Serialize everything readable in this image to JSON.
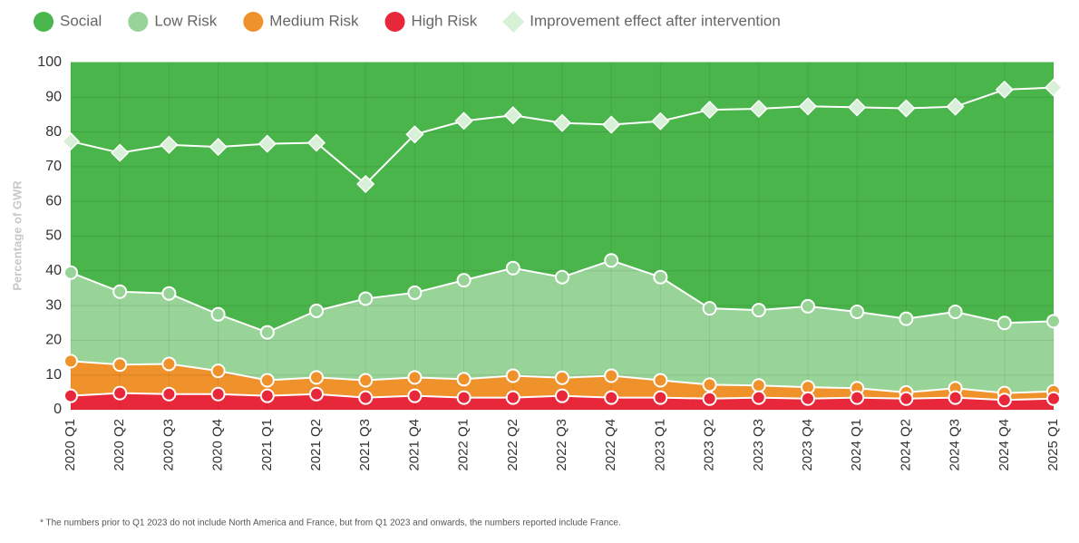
{
  "chart_data": {
    "type": "stacked-area",
    "y_label": "Percentage of GWR",
    "footnote": "* The numbers prior to Q1 2023 do not include North America and France, but from Q1 2023 and onwards, the numbers reported include France.",
    "categories": [
      "2020 Q1",
      "2020 Q2",
      "2020 Q3",
      "2020 Q4",
      "2021 Q1",
      "2021 Q2",
      "2021 Q3",
      "2021 Q4",
      "2022 Q1",
      "2022 Q2",
      "2022 Q3",
      "2022 Q4",
      "2023 Q1",
      "2023 Q2",
      "2023 Q3",
      "2023 Q4",
      "2024 Q1",
      "2024 Q2",
      "2024 Q3",
      "2024 Q4",
      "2025 Q1"
    ],
    "series": [
      {
        "name": "Social",
        "type": "area",
        "color": "#4ab54a",
        "markers": false,
        "values": [
          60.5,
          66,
          66.5,
          72.5,
          77.7,
          71.5,
          68,
          66.3,
          62.7,
          59.2,
          61.8,
          57,
          61.8,
          70.8,
          71.3,
          70.2,
          71.8,
          73.8,
          71.8,
          75,
          74.5
        ]
      },
      {
        "name": "Low Risk",
        "type": "area",
        "color": "#98d498",
        "markers": true,
        "values": [
          25.5,
          21,
          20.3,
          16.3,
          13.8,
          19.2,
          23.5,
          24.4,
          28.5,
          31,
          29,
          33.2,
          29.7,
          22,
          21.7,
          23.3,
          22,
          21.2,
          22,
          20.2,
          20.2
        ]
      },
      {
        "name": "Medium Risk",
        "type": "area",
        "color": "#f0922b",
        "markers": true,
        "values": [
          10,
          8.2,
          8.7,
          6.7,
          4.5,
          4.8,
          5,
          5.3,
          5.3,
          6.3,
          5.2,
          6.3,
          5,
          4,
          3.5,
          3.3,
          2.7,
          1.8,
          2.7,
          2,
          2.1
        ]
      },
      {
        "name": "High Risk",
        "type": "area",
        "color": "#e8283a",
        "markers": true,
        "values": [
          4,
          4.8,
          4.5,
          4.5,
          4,
          4.5,
          3.5,
          4,
          3.5,
          3.5,
          4,
          3.5,
          3.5,
          3.2,
          3.5,
          3.2,
          3.5,
          3.2,
          3.5,
          2.8,
          3.2
        ]
      },
      {
        "name": "Improvement effect after intervention",
        "type": "line",
        "color": "#d8efd8",
        "markers": true,
        "values": [
          77.3,
          74,
          76.3,
          75.7,
          76.6,
          76.9,
          65,
          79.3,
          83.2,
          84.8,
          82.6,
          82.1,
          83.1,
          86.4,
          86.7,
          87.4,
          87.1,
          86.8,
          87.3,
          92.2,
          92.8
        ]
      }
    ],
    "ylim": [
      0,
      100
    ],
    "yticks": [
      0,
      10,
      20,
      30,
      40,
      50,
      60,
      70,
      80,
      90,
      100
    ],
    "grid": true
  }
}
